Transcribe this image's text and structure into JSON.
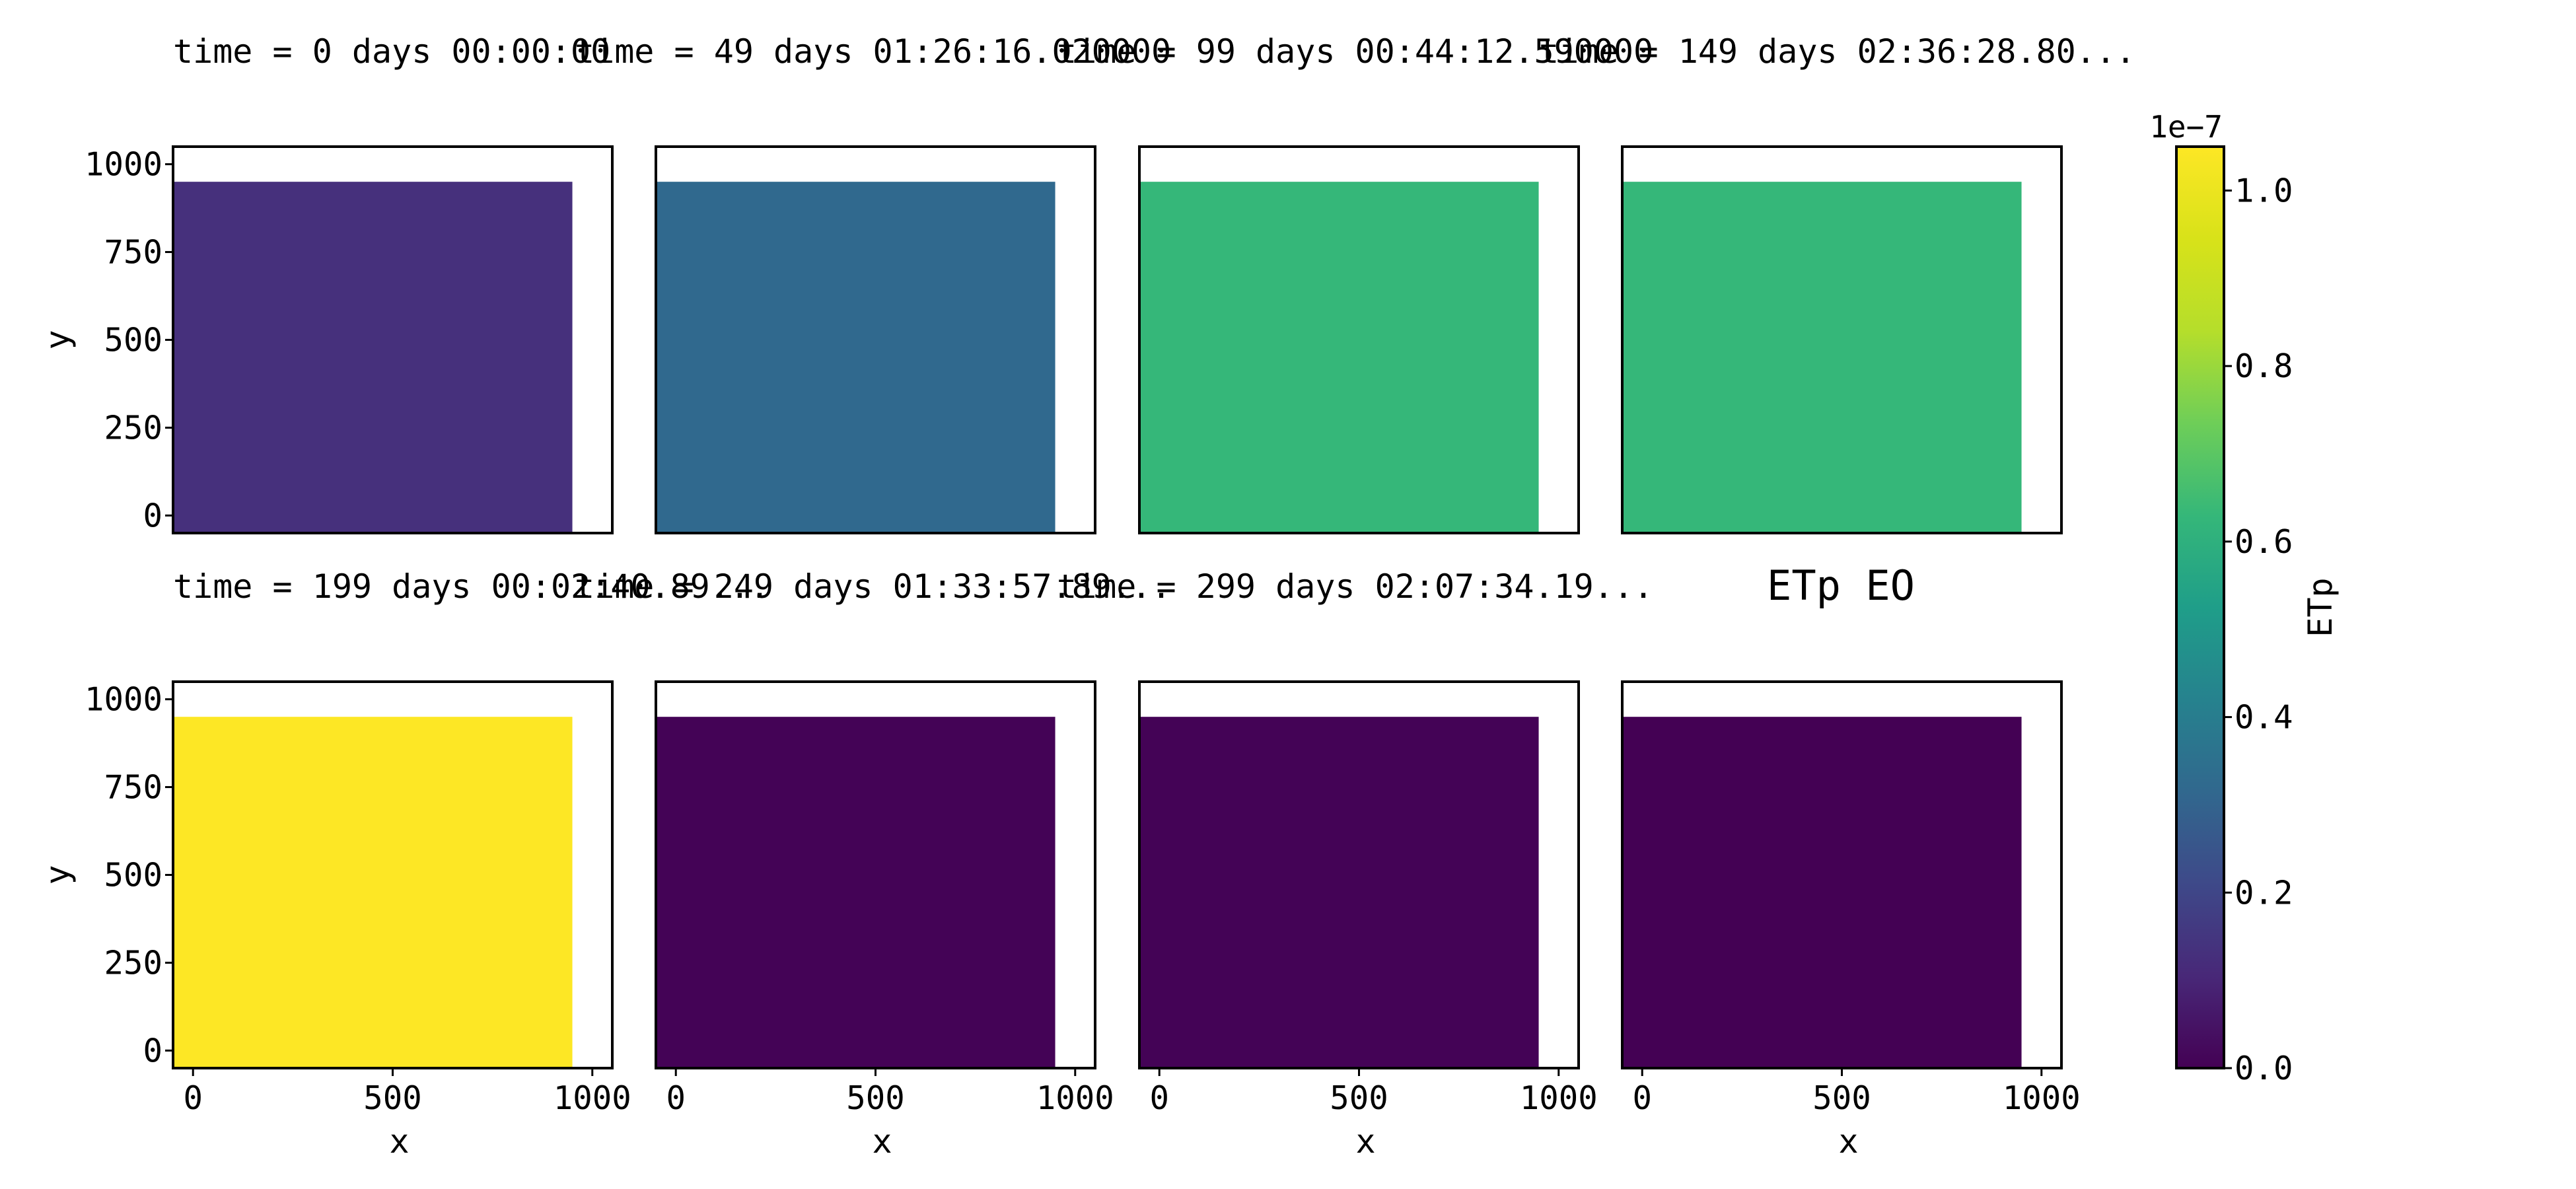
{
  "chart_data": {
    "type": "heatmap",
    "suptitle": "ETp EO",
    "x_axis": {
      "label": "x",
      "range": [
        -50,
        1050
      ],
      "ticks": [
        0,
        500,
        1000
      ],
      "tick_labels": [
        "0",
        "500",
        "1000"
      ]
    },
    "y_axis": {
      "label": "y",
      "range": [
        -50,
        1050
      ],
      "ticks": [
        0,
        250,
        500,
        750,
        1000
      ],
      "tick_labels": [
        "0",
        "250",
        "500",
        "750",
        "1000"
      ]
    },
    "cell_extent": {
      "x": [
        -50,
        950
      ],
      "y": [
        -50,
        950
      ]
    },
    "panels": [
      {
        "title": "time = 0 days 00:00:00",
        "value": 1.3e-08
      },
      {
        "title": "time = 49 days 01:26:16.020000",
        "value": 3.2e-08
      },
      {
        "title": "time = 99 days 00:44:12.590000",
        "value": 6.3e-08
      },
      {
        "title": "time = 149 days 02:36:28.80...",
        "value": 6.3e-08
      },
      {
        "title": "time = 199 days 00:02:40.89...",
        "value": 1.05e-07
      },
      {
        "title": "time = 249 days 01:33:57.89...",
        "value": 5e-10
      },
      {
        "title": "time = 299 days 02:07:34.19...",
        "value": 5e-10
      },
      {
        "title": "",
        "value": 0.0
      }
    ],
    "colorbar": {
      "label": "ETp",
      "colormap": "viridis",
      "offset_text": "1e−7",
      "range": [
        0,
        1.05e-07
      ],
      "ticks": [
        0,
        2e-08,
        4e-08,
        6e-08,
        8e-08,
        1e-07
      ],
      "tick_labels": [
        "0.0",
        "0.2",
        "0.4",
        "0.6",
        "0.8",
        "1.0"
      ]
    }
  }
}
